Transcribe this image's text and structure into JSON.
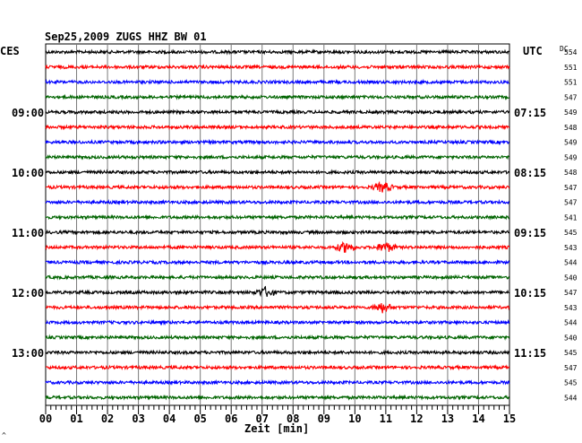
{
  "chart_data": {
    "type": "line",
    "title": "Sep25,2009   ZUGS HHZ BW 01",
    "left_axis_label": "CES",
    "right_axis_label": "UTC",
    "dc_label": "DC",
    "xlabel": "Zeit [min]",
    "x_ticks": [
      "00",
      "01",
      "02",
      "03",
      "04",
      "05",
      "06",
      "07",
      "08",
      "09",
      "10",
      "11",
      "12",
      "13",
      "14",
      "15"
    ],
    "xlim": [
      0,
      15
    ],
    "left_time_labels": [
      {
        "trace": 4,
        "text": "09:00"
      },
      {
        "trace": 8,
        "text": "10:00"
      },
      {
        "trace": 12,
        "text": "11:00"
      },
      {
        "trace": 16,
        "text": "12:00"
      },
      {
        "trace": 20,
        "text": "13:00"
      }
    ],
    "right_time_labels": [
      {
        "trace": 4,
        "text": "07:15"
      },
      {
        "trace": 8,
        "text": "08:15"
      },
      {
        "trace": 12,
        "text": "09:15"
      },
      {
        "trace": 16,
        "text": "10:15"
      },
      {
        "trace": 20,
        "text": "11:15"
      }
    ],
    "series_colors": [
      "#000000",
      "#ff0000",
      "#0000ff",
      "#006400"
    ],
    "dc_values": [
      "554",
      "551",
      "551",
      "547",
      "549",
      "548",
      "549",
      "549",
      "548",
      "547",
      "547",
      "541",
      "545",
      "543",
      "544",
      "540",
      "547",
      "543",
      "544",
      "540",
      "545",
      "547",
      "545",
      "544"
    ],
    "events": [
      {
        "trace": 9,
        "minute": 10.9
      },
      {
        "trace": 13,
        "minute": 9.7
      },
      {
        "trace": 13,
        "minute": 11.0
      },
      {
        "trace": 16,
        "minute": 7.1
      },
      {
        "trace": 17,
        "minute": 10.9
      }
    ]
  },
  "footer_mark": "^"
}
